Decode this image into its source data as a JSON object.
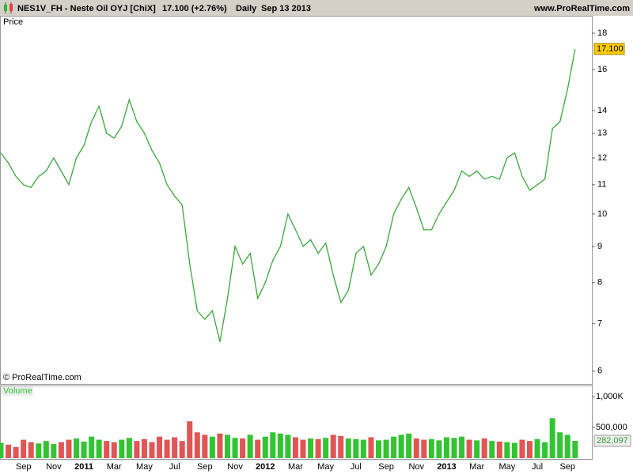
{
  "header": {
    "symbol": "NES1V_FH - Neste Oil OYJ [ChiX]",
    "quote": "17.100 (+2.76%)",
    "period": "Daily",
    "date": "Sep 13 2013",
    "site": "www.ProRealTime.com"
  },
  "chart_data": [
    {
      "type": "line",
      "title": "Price",
      "credit": "© ProRealTime.com",
      "color": "#3aa83a",
      "log_scale": true,
      "categories": [
        null,
        null,
        null,
        "Sep",
        null,
        null,
        null,
        "Nov",
        null,
        null,
        null,
        "2011",
        null,
        null,
        null,
        "Mar",
        null,
        null,
        null,
        "May",
        null,
        null,
        null,
        "Jul",
        null,
        null,
        null,
        "Sep",
        null,
        null,
        null,
        "Nov",
        null,
        null,
        null,
        "2012",
        null,
        null,
        null,
        "Mar",
        null,
        null,
        null,
        "May",
        null,
        null,
        null,
        "Jul",
        null,
        null,
        null,
        "Sep",
        null,
        null,
        null,
        "Nov",
        null,
        null,
        null,
        "2013",
        null,
        null,
        null,
        "Mar",
        null,
        null,
        null,
        "May",
        null,
        null,
        null,
        "Jul",
        null,
        null,
        null,
        "Sep",
        null
      ],
      "values": [
        12.2,
        11.8,
        11.3,
        11.0,
        10.9,
        11.3,
        11.5,
        12.0,
        11.5,
        11.0,
        12.0,
        12.5,
        13.5,
        14.2,
        13.0,
        12.8,
        13.3,
        14.5,
        13.5,
        13.0,
        12.3,
        11.8,
        11.0,
        10.6,
        10.3,
        8.5,
        7.3,
        7.1,
        7.3,
        6.6,
        7.6,
        9.0,
        8.5,
        8.8,
        7.6,
        8.0,
        8.6,
        9.0,
        10.0,
        9.5,
        9.0,
        9.2,
        8.8,
        9.1,
        8.2,
        7.5,
        7.8,
        8.8,
        9.0,
        8.2,
        8.5,
        9.0,
        10.0,
        10.5,
        10.9,
        10.2,
        9.5,
        9.5,
        10.0,
        10.4,
        10.8,
        11.5,
        11.3,
        11.5,
        11.2,
        11.3,
        11.2,
        12.0,
        12.2,
        11.3,
        10.8,
        11.0,
        11.2,
        13.2,
        13.5,
        15.0,
        17.1
      ],
      "last": {
        "value": 17.1,
        "label": "17.100",
        "color": "#ffcc00"
      },
      "ylim": [
        5.77,
        18.95
      ],
      "yticks": [
        6,
        7,
        8,
        9,
        10,
        11,
        12,
        13,
        14,
        16,
        18
      ]
    },
    {
      "type": "bar",
      "title": "Volume",
      "up_color": "#33c433",
      "down_color": "#e05555",
      "values": [
        250000,
        220000,
        180000,
        300000,
        260000,
        240000,
        280000,
        230000,
        260000,
        300000,
        320000,
        270000,
        350000,
        300000,
        280000,
        260000,
        300000,
        330000,
        280000,
        310000,
        260000,
        350000,
        300000,
        340000,
        280000,
        600000,
        420000,
        380000,
        350000,
        400000,
        380000,
        330000,
        320000,
        380000,
        300000,
        350000,
        420000,
        400000,
        380000,
        340000,
        300000,
        320000,
        310000,
        330000,
        380000,
        360000,
        320000,
        310000,
        300000,
        340000,
        290000,
        300000,
        350000,
        380000,
        400000,
        320000,
        300000,
        310000,
        290000,
        340000,
        330000,
        350000,
        300000,
        290000,
        320000,
        280000,
        270000,
        260000,
        250000,
        300000,
        280000,
        310000,
        260000,
        650000,
        420000,
        380000,
        282097
      ],
      "last": {
        "value": 282097,
        "label": "282,097"
      },
      "ylim": [
        0,
        1180000
      ],
      "yticks": [
        {
          "value": 500000,
          "label": "500,000"
        },
        {
          "value": 1000000,
          "label": "1,000K"
        }
      ]
    }
  ]
}
